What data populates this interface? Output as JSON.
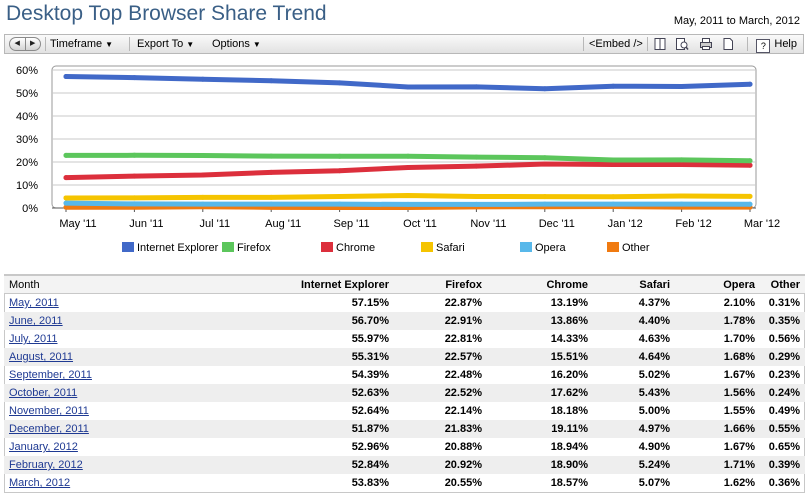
{
  "header": {
    "title": "Desktop Top Browser Share Trend",
    "date_range": "May, 2011 to March, 2012"
  },
  "toolbar": {
    "prev_icon": "triangle-left-icon",
    "next_icon": "triangle-right-icon",
    "timeframe_label": "Timeframe",
    "export_label": "Export To",
    "options_label": "Options",
    "embed_label": "<Embed />",
    "help_label": "Help",
    "icons": [
      "book-icon",
      "search-report-icon",
      "print-icon",
      "document-icon",
      "help-icon"
    ]
  },
  "chart_data": {
    "type": "line",
    "categories": [
      "May '11",
      "Jun '11",
      "Jul '11",
      "Aug '11",
      "Sep '11",
      "Oct '11",
      "Nov '11",
      "Dec '11",
      "Jan '12",
      "Feb '12",
      "Mar '12"
    ],
    "y_ticks": [
      "0%",
      "10%",
      "20%",
      "30%",
      "40%",
      "50%",
      "60%"
    ],
    "ylim": [
      0,
      60
    ],
    "grid": true,
    "legend_position": "bottom",
    "series": [
      {
        "name": "Internet Explorer",
        "color": "#4169c8",
        "values": [
          57.15,
          56.7,
          55.97,
          55.31,
          54.39,
          52.63,
          52.64,
          51.87,
          52.96,
          52.84,
          53.83
        ]
      },
      {
        "name": "Firefox",
        "color": "#5cc65c",
        "values": [
          22.87,
          22.91,
          22.81,
          22.57,
          22.48,
          22.52,
          22.14,
          21.83,
          20.88,
          20.92,
          20.55
        ]
      },
      {
        "name": "Chrome",
        "color": "#dc2f3c",
        "values": [
          13.19,
          13.86,
          14.33,
          15.51,
          16.2,
          17.62,
          18.18,
          19.11,
          18.94,
          18.9,
          18.57
        ]
      },
      {
        "name": "Safari",
        "color": "#f5c400",
        "values": [
          4.37,
          4.4,
          4.63,
          4.64,
          5.02,
          5.43,
          5.0,
          4.97,
          4.9,
          5.24,
          5.07
        ]
      },
      {
        "name": "Opera",
        "color": "#58b8ea",
        "values": [
          2.1,
          1.78,
          1.7,
          1.68,
          1.67,
          1.56,
          1.55,
          1.66,
          1.67,
          1.71,
          1.62
        ]
      },
      {
        "name": "Other",
        "color": "#f07a10",
        "values": [
          0.31,
          0.35,
          0.56,
          0.29,
          0.23,
          0.24,
          0.49,
          0.55,
          0.65,
          0.39,
          0.36
        ]
      }
    ]
  },
  "table": {
    "headers": [
      "Month",
      "Internet Explorer",
      "Firefox",
      "Chrome",
      "Safari",
      "Opera",
      "Other"
    ],
    "rows": [
      [
        "May, 2011",
        "57.15%",
        "22.87%",
        "13.19%",
        "4.37%",
        "2.10%",
        "0.31%"
      ],
      [
        "June, 2011",
        "56.70%",
        "22.91%",
        "13.86%",
        "4.40%",
        "1.78%",
        "0.35%"
      ],
      [
        "July, 2011",
        "55.97%",
        "22.81%",
        "14.33%",
        "4.63%",
        "1.70%",
        "0.56%"
      ],
      [
        "August, 2011",
        "55.31%",
        "22.57%",
        "15.51%",
        "4.64%",
        "1.68%",
        "0.29%"
      ],
      [
        "September, 2011",
        "54.39%",
        "22.48%",
        "16.20%",
        "5.02%",
        "1.67%",
        "0.23%"
      ],
      [
        "October, 2011",
        "52.63%",
        "22.52%",
        "17.62%",
        "5.43%",
        "1.56%",
        "0.24%"
      ],
      [
        "November, 2011",
        "52.64%",
        "22.14%",
        "18.18%",
        "5.00%",
        "1.55%",
        "0.49%"
      ],
      [
        "December, 2011",
        "51.87%",
        "21.83%",
        "19.11%",
        "4.97%",
        "1.66%",
        "0.55%"
      ],
      [
        "January, 2012",
        "52.96%",
        "20.88%",
        "18.94%",
        "4.90%",
        "1.67%",
        "0.65%"
      ],
      [
        "February, 2012",
        "52.84%",
        "20.92%",
        "18.90%",
        "5.24%",
        "1.71%",
        "0.39%"
      ],
      [
        "March, 2012",
        "53.83%",
        "20.55%",
        "18.57%",
        "5.07%",
        "1.62%",
        "0.36%"
      ]
    ]
  }
}
